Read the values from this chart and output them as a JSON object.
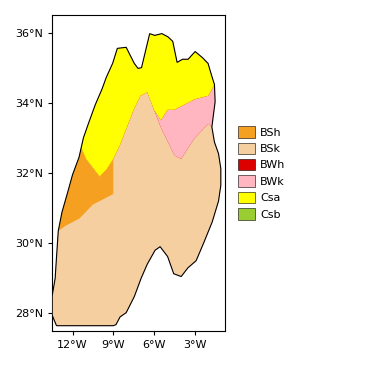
{
  "xlim": [
    -13.5,
    -0.8
  ],
  "ylim": [
    27.5,
    36.5
  ],
  "xticks": [
    -12,
    -9,
    -6,
    -3
  ],
  "yticks": [
    28,
    30,
    32,
    34,
    36
  ],
  "colors": {
    "BSh": "#F5A020",
    "BSk": "#F5CFA0",
    "BWh": "#DD0000",
    "BWk": "#FFB6C1",
    "Csa": "#FFFF00",
    "Csb": "#9ACD32"
  },
  "legend_labels": [
    "BSh",
    "BSk",
    "BWh",
    "BWk",
    "Csa",
    "Csb"
  ],
  "figsize": [
    3.75,
    3.65
  ],
  "dpi": 100,
  "morocco": [
    [
      -5.95,
      35.92
    ],
    [
      -5.42,
      35.97
    ],
    [
      -4.98,
      35.88
    ],
    [
      -4.62,
      35.75
    ],
    [
      -4.3,
      35.15
    ],
    [
      -3.9,
      35.24
    ],
    [
      -3.49,
      35.24
    ],
    [
      -2.97,
      35.46
    ],
    [
      -2.42,
      35.28
    ],
    [
      -2.02,
      35.12
    ],
    [
      -1.73,
      34.74
    ],
    [
      -1.55,
      34.52
    ],
    [
      -1.5,
      34.03
    ],
    [
      -1.74,
      33.31
    ],
    [
      -1.55,
      32.88
    ],
    [
      -1.25,
      32.55
    ],
    [
      -1.08,
      32.12
    ],
    [
      -1.08,
      31.65
    ],
    [
      -1.25,
      31.2
    ],
    [
      -1.72,
      30.6
    ],
    [
      -2.35,
      30.0
    ],
    [
      -2.9,
      29.5
    ],
    [
      -3.5,
      29.3
    ],
    [
      -4.0,
      29.05
    ],
    [
      -4.55,
      29.13
    ],
    [
      -5.0,
      29.62
    ],
    [
      -5.55,
      29.9
    ],
    [
      -5.92,
      29.8
    ],
    [
      -6.5,
      29.4
    ],
    [
      -6.95,
      29.0
    ],
    [
      -7.45,
      28.48
    ],
    [
      -8.05,
      28.02
    ],
    [
      -8.5,
      27.9
    ],
    [
      -8.8,
      27.68
    ],
    [
      -9.0,
      27.65
    ],
    [
      -13.18,
      27.65
    ],
    [
      -13.5,
      27.95
    ],
    [
      -13.5,
      28.5
    ],
    [
      -13.28,
      29.0
    ],
    [
      -13.18,
      29.6
    ],
    [
      -13.05,
      30.35
    ],
    [
      -12.78,
      30.88
    ],
    [
      -12.38,
      31.42
    ],
    [
      -12.0,
      31.95
    ],
    [
      -11.52,
      32.45
    ],
    [
      -11.2,
      33.0
    ],
    [
      -10.82,
      33.42
    ],
    [
      -10.32,
      33.95
    ],
    [
      -9.82,
      34.4
    ],
    [
      -9.52,
      34.72
    ],
    [
      -9.05,
      35.12
    ],
    [
      -8.7,
      35.55
    ],
    [
      -8.05,
      35.58
    ],
    [
      -7.45,
      35.12
    ],
    [
      -7.18,
      34.98
    ],
    [
      -6.92,
      35.0
    ],
    [
      -6.32,
      35.97
    ],
    [
      -5.95,
      35.92
    ]
  ],
  "BWh_zone": [
    [
      -13.18,
      27.65
    ],
    [
      -9.0,
      27.65
    ],
    [
      -8.8,
      27.68
    ],
    [
      -8.5,
      27.9
    ],
    [
      -8.05,
      28.02
    ],
    [
      -7.45,
      28.48
    ],
    [
      -6.95,
      29.0
    ],
    [
      -6.5,
      29.4
    ],
    [
      -5.92,
      29.8
    ],
    [
      -5.55,
      29.9
    ],
    [
      -5.0,
      29.62
    ],
    [
      -4.55,
      29.13
    ],
    [
      -4.0,
      29.05
    ],
    [
      -3.5,
      29.3
    ],
    [
      -2.9,
      29.5
    ],
    [
      -2.35,
      30.0
    ],
    [
      -1.72,
      30.6
    ],
    [
      -1.25,
      31.2
    ],
    [
      -1.08,
      31.65
    ],
    [
      -1.08,
      32.12
    ],
    [
      -1.25,
      32.55
    ],
    [
      -1.55,
      32.88
    ],
    [
      -1.74,
      33.31
    ],
    [
      -1.5,
      34.03
    ],
    [
      -1.55,
      34.52
    ],
    [
      -1.73,
      34.74
    ],
    [
      -2.02,
      35.12
    ],
    [
      -2.42,
      35.28
    ],
    [
      -2.97,
      35.46
    ],
    [
      -3.49,
      35.24
    ],
    [
      -3.9,
      35.24
    ],
    [
      -4.3,
      35.15
    ],
    [
      -4.62,
      35.75
    ],
    [
      -4.98,
      35.88
    ],
    [
      -5.42,
      35.97
    ],
    [
      -5.95,
      35.92
    ],
    [
      -6.32,
      35.97
    ],
    [
      -6.92,
      35.0
    ],
    [
      -7.18,
      34.98
    ],
    [
      -7.45,
      35.12
    ],
    [
      -8.05,
      35.58
    ],
    [
      -8.7,
      35.55
    ],
    [
      -9.05,
      35.12
    ],
    [
      -9.52,
      34.72
    ],
    [
      -9.82,
      34.4
    ],
    [
      -10.32,
      33.95
    ],
    [
      -10.82,
      33.42
    ],
    [
      -11.2,
      33.0
    ],
    [
      -11.52,
      32.45
    ],
    [
      -12.0,
      31.95
    ],
    [
      -12.38,
      31.42
    ],
    [
      -12.78,
      30.88
    ],
    [
      -13.05,
      30.35
    ],
    [
      -13.18,
      29.6
    ],
    [
      -13.28,
      29.0
    ],
    [
      -13.5,
      28.5
    ],
    [
      -13.5,
      27.95
    ],
    [
      -13.18,
      27.65
    ]
  ],
  "BSk_zone": [
    [
      -13.5,
      27.95
    ],
    [
      -13.18,
      27.65
    ],
    [
      -9.0,
      27.65
    ],
    [
      -8.8,
      27.68
    ],
    [
      -8.5,
      27.9
    ],
    [
      -8.05,
      28.02
    ],
    [
      -7.45,
      28.48
    ],
    [
      -6.95,
      29.0
    ],
    [
      -6.5,
      29.4
    ],
    [
      -5.92,
      29.8
    ],
    [
      -5.55,
      29.9
    ],
    [
      -5.0,
      29.62
    ],
    [
      -4.55,
      29.13
    ],
    [
      -4.0,
      29.05
    ],
    [
      -3.5,
      29.3
    ],
    [
      -2.9,
      29.5
    ],
    [
      -2.35,
      30.0
    ],
    [
      -1.72,
      30.6
    ],
    [
      -1.25,
      31.2
    ],
    [
      -1.08,
      31.65
    ],
    [
      -1.08,
      32.12
    ],
    [
      -1.25,
      32.55
    ],
    [
      -1.55,
      32.88
    ],
    [
      -1.74,
      33.31
    ],
    [
      -2.0,
      33.4
    ],
    [
      -2.5,
      33.2
    ],
    [
      -3.0,
      33.0
    ],
    [
      -3.5,
      32.7
    ],
    [
      -4.0,
      32.4
    ],
    [
      -4.5,
      32.5
    ],
    [
      -5.0,
      32.9
    ],
    [
      -5.5,
      33.3
    ],
    [
      -6.0,
      33.8
    ],
    [
      -6.5,
      34.3
    ],
    [
      -7.0,
      34.2
    ],
    [
      -7.5,
      33.8
    ],
    [
      -8.0,
      33.3
    ],
    [
      -8.5,
      32.8
    ],
    [
      -9.0,
      32.4
    ],
    [
      -9.5,
      32.1
    ],
    [
      -10.0,
      31.9
    ],
    [
      -11.0,
      32.4
    ],
    [
      -11.5,
      32.85
    ],
    [
      -12.0,
      33.2
    ],
    [
      -12.5,
      33.2
    ],
    [
      -13.5,
      33.6
    ],
    [
      -13.5,
      27.95
    ]
  ],
  "BSh_zone": [
    [
      -13.5,
      27.95
    ],
    [
      -13.5,
      33.6
    ],
    [
      -12.5,
      33.2
    ],
    [
      -12.0,
      33.2
    ],
    [
      -11.5,
      32.85
    ],
    [
      -11.0,
      32.4
    ],
    [
      -10.0,
      31.9
    ],
    [
      -9.5,
      32.1
    ],
    [
      -9.0,
      32.4
    ],
    [
      -9.0,
      31.4
    ],
    [
      -10.5,
      31.1
    ],
    [
      -11.5,
      30.7
    ],
    [
      -12.5,
      30.5
    ],
    [
      -13.05,
      30.35
    ],
    [
      -13.18,
      29.6
    ],
    [
      -13.28,
      29.0
    ],
    [
      -13.5,
      28.5
    ],
    [
      -13.5,
      27.95
    ]
  ],
  "BWk_zone": [
    [
      -1.74,
      33.31
    ],
    [
      -1.5,
      34.03
    ],
    [
      -1.55,
      34.52
    ],
    [
      -2.0,
      34.2
    ],
    [
      -3.0,
      34.1
    ],
    [
      -4.0,
      33.9
    ],
    [
      -4.5,
      33.8
    ],
    [
      -5.0,
      33.8
    ],
    [
      -5.5,
      33.5
    ],
    [
      -6.0,
      33.8
    ],
    [
      -6.5,
      34.3
    ],
    [
      -6.0,
      33.8
    ],
    [
      -5.5,
      33.3
    ],
    [
      -5.0,
      32.9
    ],
    [
      -4.5,
      32.5
    ],
    [
      -4.0,
      32.4
    ],
    [
      -3.5,
      32.7
    ],
    [
      -3.0,
      33.0
    ],
    [
      -2.5,
      33.2
    ],
    [
      -2.0,
      33.4
    ],
    [
      -1.74,
      33.31
    ]
  ],
  "Csa_zone": [
    [
      -13.5,
      33.6
    ],
    [
      -13.5,
      36.5
    ],
    [
      -9.52,
      34.72
    ],
    [
      -9.82,
      34.4
    ],
    [
      -10.32,
      33.95
    ],
    [
      -10.82,
      33.42
    ],
    [
      -11.2,
      33.0
    ],
    [
      -11.52,
      32.45
    ],
    [
      -12.0,
      31.95
    ],
    [
      -12.38,
      31.42
    ],
    [
      -12.78,
      30.88
    ],
    [
      -13.05,
      30.35
    ],
    [
      -13.5,
      33.6
    ],
    [
      -12.5,
      33.2
    ],
    [
      -12.0,
      33.2
    ],
    [
      -11.5,
      32.85
    ],
    [
      -11.0,
      32.4
    ],
    [
      -10.0,
      31.9
    ],
    [
      -9.5,
      32.1
    ],
    [
      -9.0,
      32.4
    ],
    [
      -8.5,
      32.8
    ],
    [
      -8.0,
      33.3
    ],
    [
      -7.5,
      33.8
    ],
    [
      -7.0,
      34.2
    ],
    [
      -6.5,
      34.3
    ],
    [
      -6.0,
      33.8
    ],
    [
      -5.5,
      33.5
    ],
    [
      -5.0,
      33.8
    ],
    [
      -4.5,
      33.8
    ],
    [
      -4.0,
      33.9
    ],
    [
      -3.0,
      34.1
    ],
    [
      -2.0,
      34.2
    ],
    [
      -1.55,
      34.52
    ],
    [
      -1.73,
      34.74
    ],
    [
      -2.02,
      35.12
    ],
    [
      -2.42,
      35.28
    ],
    [
      -2.97,
      35.46
    ],
    [
      -3.49,
      35.24
    ],
    [
      -3.9,
      35.24
    ],
    [
      -4.3,
      35.15
    ],
    [
      -4.62,
      35.75
    ],
    [
      -4.98,
      35.88
    ],
    [
      -5.42,
      35.97
    ],
    [
      -5.95,
      35.92
    ],
    [
      -6.32,
      35.97
    ],
    [
      -6.92,
      35.0
    ],
    [
      -7.18,
      34.98
    ],
    [
      -7.45,
      35.12
    ],
    [
      -8.05,
      35.58
    ],
    [
      -8.7,
      35.55
    ],
    [
      -9.05,
      35.12
    ],
    [
      -13.5,
      36.5
    ]
  ],
  "Csb_zone": [
    [
      -2.02,
      35.12
    ],
    [
      -1.73,
      34.74
    ],
    [
      -1.55,
      34.52
    ],
    [
      -1.5,
      34.52
    ],
    [
      -1.5,
      36.5
    ],
    [
      -2.42,
      36.5
    ],
    [
      -2.97,
      35.9
    ],
    [
      -2.5,
      35.5
    ],
    [
      -2.42,
      35.28
    ],
    [
      -2.02,
      35.12
    ]
  ]
}
